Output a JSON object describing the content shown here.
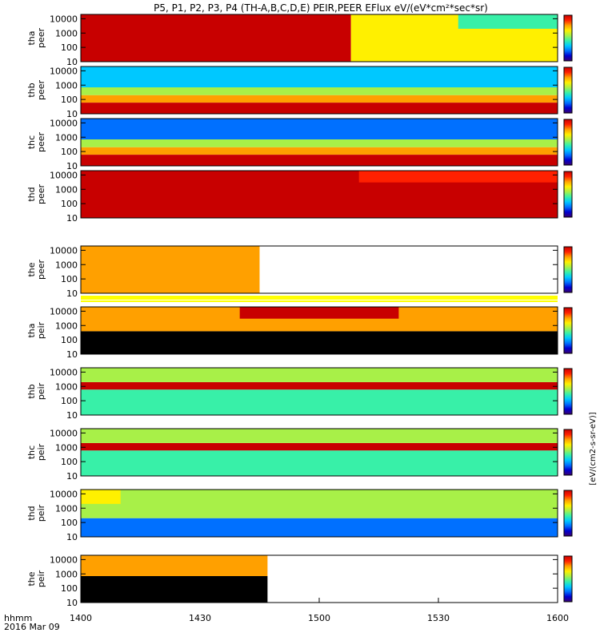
{
  "chart_data": {
    "type": "heatmap",
    "title": "P5, P1, P2, P3, P4 (TH-A,B,C,D,E) PEIR,PEER EFlux eV/(eV*cm²*sec*sr)",
    "xlabel": "hhmm",
    "date_label": "2016 Mar 09",
    "x_ticks": [
      "1400",
      "1430",
      "1500",
      "1530",
      "1600"
    ],
    "xlim": [
      "14:00",
      "16:00"
    ],
    "y_scale": "log",
    "ylim": [
      10,
      20000
    ],
    "y_ticks": [
      "10",
      "100",
      "1000",
      "10000"
    ],
    "panels": [
      {
        "label": "tha peer",
        "probe": "tha",
        "species": "peer",
        "data_end": "16:00",
        "bands": [
          {
            "from": 10,
            "to": 20000,
            "level": 0.95,
            "until": "15:08"
          },
          {
            "from": 10,
            "to": 20000,
            "level": 0.62,
            "from_time": "15:08"
          },
          {
            "from": 2000,
            "to": 20000,
            "level": 0.42,
            "from_time": "15:35"
          }
        ]
      },
      {
        "label": "thb peer",
        "probe": "thb",
        "species": "peer",
        "data_end": "16:00",
        "bands": [
          {
            "from": 10,
            "to": 60,
            "level": 0.96
          },
          {
            "from": 60,
            "to": 200,
            "level": 0.78
          },
          {
            "from": 200,
            "to": 700,
            "level": 0.55
          },
          {
            "from": 700,
            "to": 20000,
            "level": 0.38
          }
        ]
      },
      {
        "label": "thc peer",
        "probe": "thc",
        "species": "peer",
        "data_end": "16:00",
        "bands": [
          {
            "from": 10,
            "to": 60,
            "level": 0.97
          },
          {
            "from": 60,
            "to": 200,
            "level": 0.8
          },
          {
            "from": 200,
            "to": 700,
            "level": 0.5
          },
          {
            "from": 700,
            "to": 20000,
            "level": 0.2
          }
        ]
      },
      {
        "label": "thd peer",
        "probe": "thd",
        "species": "peer",
        "data_end": "16:00",
        "bands": [
          {
            "from": 10,
            "to": 20000,
            "level": 0.97
          },
          {
            "from": 3000,
            "to": 20000,
            "level": 0.88,
            "from_time": "15:10"
          }
        ]
      },
      {
        "label": "the peer",
        "probe": "the",
        "species": "peer",
        "data_end": "14:45",
        "bands": [
          {
            "from": 10,
            "to": 20000,
            "level": 0.82
          }
        ]
      },
      {
        "label": "tha peir",
        "probe": "tha",
        "species": "peir",
        "data_end": "16:00",
        "bands": [
          {
            "from": 10,
            "to": 400,
            "level": 0.0
          },
          {
            "from": 400,
            "to": 20000,
            "level": 0.8
          },
          {
            "from": 3000,
            "to": 20000,
            "level": 0.95,
            "from_time": "14:40",
            "until": "15:20"
          }
        ]
      },
      {
        "label": "thb peir",
        "probe": "thb",
        "species": "peir",
        "data_end": "16:00",
        "bands": [
          {
            "from": 10,
            "to": 600,
            "level": 0.4
          },
          {
            "from": 600,
            "to": 2000,
            "level": 0.96
          },
          {
            "from": 2000,
            "to": 20000,
            "level": 0.55
          }
        ]
      },
      {
        "label": "thc peir",
        "probe": "thc",
        "species": "peir",
        "data_end": "16:00",
        "bands": [
          {
            "from": 10,
            "to": 600,
            "level": 0.4
          },
          {
            "from": 600,
            "to": 2000,
            "level": 0.95
          },
          {
            "from": 2000,
            "to": 20000,
            "level": 0.5
          }
        ]
      },
      {
        "label": "thd peir",
        "probe": "thd",
        "species": "peir",
        "data_end": "16:00",
        "bands": [
          {
            "from": 10,
            "to": 200,
            "level": 0.25
          },
          {
            "from": 200,
            "to": 20000,
            "level": 0.6
          },
          {
            "from": 2000,
            "to": 20000,
            "level": 0.72,
            "until": "14:10"
          }
        ]
      },
      {
        "label": "the peir",
        "probe": "the",
        "species": "peir",
        "data_end": "14:47",
        "bands": [
          {
            "from": 10,
            "to": 700,
            "level": 0.0
          },
          {
            "from": 700,
            "to": 20000,
            "level": 0.82
          }
        ]
      }
    ],
    "colorbar_label": "[eV/(cm2-s-sr-eV)]",
    "colormap": [
      "#3a0070",
      "#0000d0",
      "#0070ff",
      "#00c8ff",
      "#38f0a8",
      "#a8f048",
      "#fff000",
      "#ffa000",
      "#ff2000",
      "#c80000"
    ]
  }
}
